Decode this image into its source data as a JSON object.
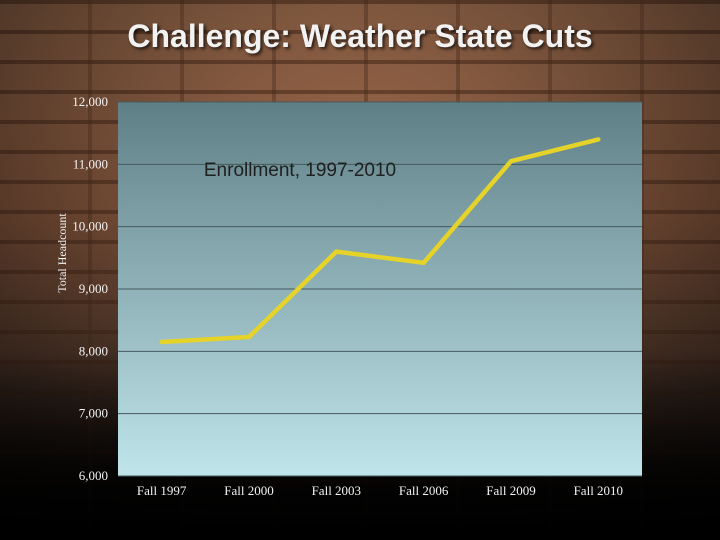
{
  "slide": {
    "title": "Challenge: Weather State Cuts"
  },
  "chart_data": {
    "type": "line",
    "title": "Enrollment, 1997-2010",
    "xlabel": "",
    "ylabel": "Total Headcount",
    "categories": [
      "Fall 1997",
      "Fall 2000",
      "Fall 2003",
      "Fall 2006",
      "Fall 2009",
      "Fall 2010"
    ],
    "series": [
      {
        "values": [
          8150,
          8230,
          9600,
          9420,
          11050,
          11400
        ]
      }
    ],
    "ylim": [
      6000,
      12000
    ],
    "yticks": [
      6000,
      7000,
      8000,
      9000,
      10000,
      11000,
      12000
    ],
    "ytick_labels": [
      "6,000",
      "7,000",
      "8,000",
      "9,000",
      "10,000",
      "11,000",
      "12,000"
    ],
    "grid": true,
    "colors": {
      "line": "#e6d32a",
      "plot_top": "#5f7f86",
      "plot_bottom": "#bfe5ea",
      "grid": "#44595e"
    }
  }
}
